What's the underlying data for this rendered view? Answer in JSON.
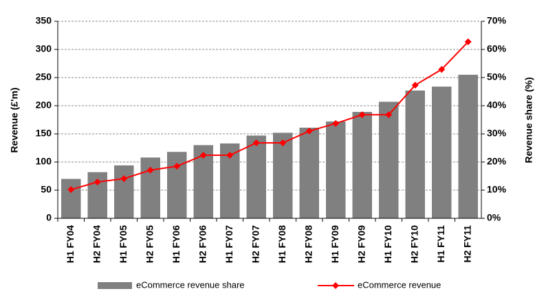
{
  "chart_data": {
    "type": "bar-line",
    "categories": [
      "H1 FY04",
      "H2 FY04",
      "H1 FY05",
      "H2 FY05",
      "H1 FY06",
      "H2 FY06",
      "H1 FY07",
      "H2 FY07",
      "H1 FY08",
      "H2 FY08",
      "H1 FY09",
      "H2 FY09",
      "H1 FY10",
      "H2 FY10",
      "H1 FY11",
      "H2 FY11"
    ],
    "y_label": "Revenue (£'m)",
    "y2_label": "Revenue share (%)",
    "ylim": [
      0,
      350
    ],
    "yticks": [
      0,
      50,
      100,
      150,
      200,
      250,
      300,
      350
    ],
    "y2lim": [
      0,
      70
    ],
    "y2ticks": [
      {
        "value": 0,
        "label": "0%"
      },
      {
        "value": 10,
        "label": "10%"
      },
      {
        "value": 20,
        "label": "20%"
      },
      {
        "value": 30,
        "label": "30%"
      },
      {
        "value": 40,
        "label": "40%"
      },
      {
        "value": 50,
        "label": "50%"
      },
      {
        "value": 60,
        "label": "60%"
      },
      {
        "value": 70,
        "label": "70%"
      }
    ],
    "grid": true,
    "legend": "bottom",
    "series": [
      {
        "name": "eCommerce revenue share",
        "type": "bar",
        "color": "#808080",
        "values": [
          70,
          82,
          94,
          108,
          118,
          130,
          133,
          147,
          152,
          161,
          172,
          189,
          207,
          227,
          234,
          255
        ]
      },
      {
        "name": "eCommerce revenue",
        "type": "line",
        "axis": "y2",
        "color": "#ff0000",
        "values": [
          10.2,
          12.9,
          14.1,
          17.1,
          18.5,
          22.4,
          22.4,
          26.8,
          26.8,
          31,
          33.7,
          36.8,
          36.8,
          47.3,
          52.9,
          62.7
        ]
      }
    ]
  }
}
